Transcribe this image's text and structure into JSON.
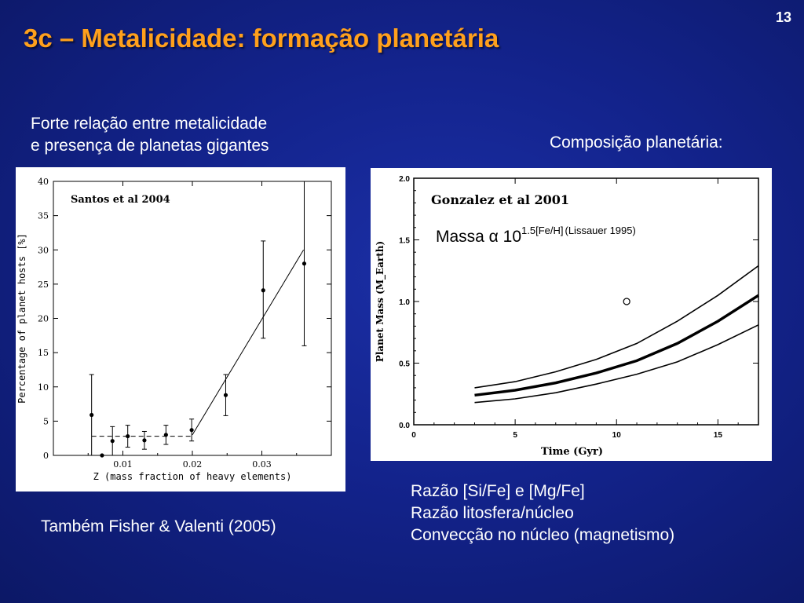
{
  "slide_number": "13",
  "title": "3c – Metalicidade: formação planetária",
  "left_caption_lines": [
    "Forte relação entre metalicidade",
    "e presença de planetas gigantes"
  ],
  "right_caption": "Composição planetária:",
  "bottom_left": "Também Fisher & Valenti (2005)",
  "bottom_right_lines": [
    "Razão [Si/Fe] e [Mg/Fe]",
    "Razão litosfera/núcleo",
    "Convecção no núcleo (magnetismo)"
  ],
  "formula": {
    "base": "Massa α 10",
    "exponent": "1.5[Fe/H]",
    "reference": "(Lissauer 1995)"
  },
  "colors": {
    "title": "#ffa01c",
    "text": "#ffffff",
    "background": "#13238c"
  },
  "chart_data": [
    {
      "type": "scatter",
      "title": "Santos et al 2004",
      "xlabel": "Z (mass fraction of heavy elements)",
      "ylabel": "Percentage of planet hosts [%]",
      "xlim": [
        0,
        0.04
      ],
      "ylim": [
        0,
        40
      ],
      "xticks": [
        0.01,
        0.02,
        0.03
      ],
      "xtick_labels": [
        "0.01",
        "0.02",
        "0.03"
      ],
      "yticks": [
        0,
        5,
        10,
        15,
        20,
        25,
        30,
        35,
        40
      ],
      "ytick_labels": [
        "0",
        "5",
        "10",
        "15",
        "20",
        "25",
        "30",
        "35",
        "40"
      ],
      "points": [
        {
          "x": 0.0055,
          "y": 5.9,
          "err_low": 5.9,
          "err_high": 5.9
        },
        {
          "x": 0.007,
          "y": 0.0,
          "err_low": 0,
          "err_high": 0
        },
        {
          "x": 0.0085,
          "y": 2.1,
          "err_low": 2.1,
          "err_high": 2.1
        },
        {
          "x": 0.0107,
          "y": 2.8,
          "err_low": 1.6,
          "err_high": 1.6
        },
        {
          "x": 0.0131,
          "y": 2.2,
          "err_low": 1.3,
          "err_high": 1.3
        },
        {
          "x": 0.0162,
          "y": 3.0,
          "err_low": 1.4,
          "err_high": 1.4
        },
        {
          "x": 0.0199,
          "y": 3.7,
          "err_low": 1.6,
          "err_high": 1.6
        },
        {
          "x": 0.0248,
          "y": 8.8,
          "err_low": 3.0,
          "err_high": 3.0
        },
        {
          "x": 0.0302,
          "y": 24.1,
          "err_low": 7.0,
          "err_high": 7.2
        },
        {
          "x": 0.0361,
          "y": 28.0,
          "err_low": 12.0,
          "err_high": 12.0
        }
      ],
      "flat_fit": {
        "x": [
          0.0055,
          0.02
        ],
        "y": 2.8
      },
      "rise_fit": {
        "x": [
          0.02,
          0.036
        ],
        "y": [
          3.0,
          30.0
        ]
      }
    },
    {
      "type": "line",
      "title": "Gonzalez et al 2001",
      "xlabel": "Time (Gyr)",
      "ylabel": "Planet Mass (M_Earth)",
      "xlim": [
        0,
        17
      ],
      "ylim": [
        0,
        2.0
      ],
      "xticks": [
        0,
        5,
        10,
        15
      ],
      "xtick_labels": [
        "0",
        "5",
        "10",
        "15"
      ],
      "yticks": [
        0.0,
        0.5,
        1.0,
        1.5,
        2.0
      ],
      "ytick_labels": [
        "0.0",
        "0.5",
        "1.0",
        "1.5",
        "2.0"
      ],
      "series": [
        {
          "x": [
            3,
            5,
            7,
            9,
            11,
            13,
            15,
            17
          ],
          "y": [
            0.3,
            0.35,
            0.43,
            0.53,
            0.66,
            0.84,
            1.05,
            1.29
          ],
          "style": "upper"
        },
        {
          "x": [
            3,
            5,
            7,
            9,
            11,
            13,
            15,
            17
          ],
          "y": [
            0.24,
            0.28,
            0.34,
            0.42,
            0.52,
            0.66,
            0.84,
            1.05
          ],
          "style": "main"
        },
        {
          "x": [
            3,
            5,
            7,
            9,
            11,
            13,
            15,
            17
          ],
          "y": [
            0.18,
            0.21,
            0.26,
            0.33,
            0.41,
            0.51,
            0.65,
            0.81
          ],
          "style": "lower"
        }
      ],
      "open_point": {
        "x": 10.5,
        "y": 1.0
      }
    }
  ]
}
